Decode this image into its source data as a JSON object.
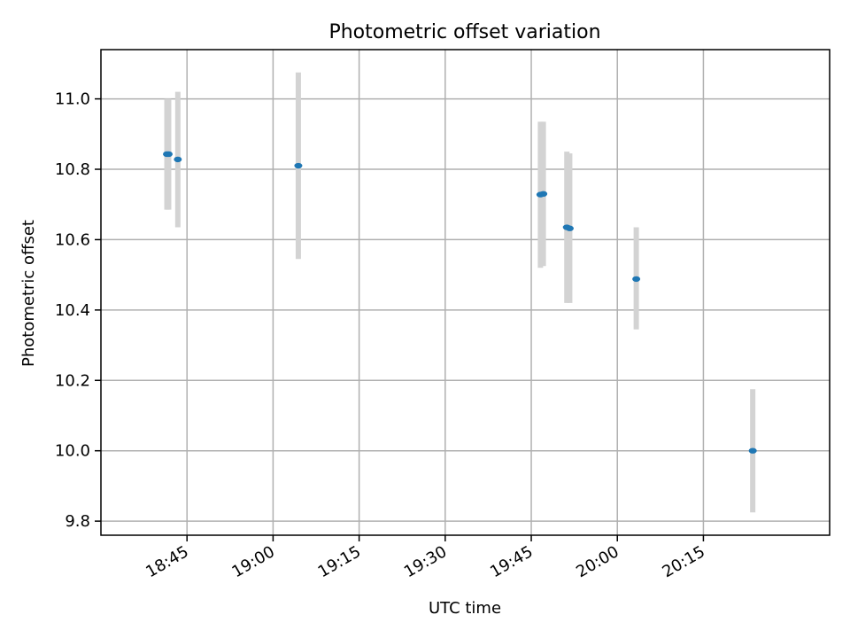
{
  "chart_data": {
    "type": "scatter",
    "title": "Photometric offset variation",
    "xlabel": "UTC time",
    "ylabel": "Photometric offset",
    "x_unit": "UTC time (HH:MM)",
    "xlim": [
      "18:30",
      "20:37"
    ],
    "ylim": [
      9.76,
      11.14
    ],
    "x_ticks": [
      "18:45",
      "19:00",
      "19:15",
      "19:30",
      "19:45",
      "20:00",
      "20:15"
    ],
    "y_ticks": [
      9.8,
      10.0,
      10.2,
      10.4,
      10.6,
      10.8,
      11.0
    ],
    "grid": true,
    "colors": {
      "point": "#1f77b4",
      "errorbar": "#d3d3d3"
    },
    "points": [
      {
        "x": "18:41:30",
        "y": 10.843,
        "ylow": 10.685,
        "yhigh": 11.0
      },
      {
        "x": "18:41:48",
        "y": 10.843,
        "ylow": 10.685,
        "yhigh": 11.0
      },
      {
        "x": "18:43:24",
        "y": 10.828,
        "ylow": 10.635,
        "yhigh": 11.02
      },
      {
        "x": "19:04:24",
        "y": 10.81,
        "ylow": 10.545,
        "yhigh": 11.075
      },
      {
        "x": "19:46:36",
        "y": 10.728,
        "ylow": 10.52,
        "yhigh": 10.935
      },
      {
        "x": "19:47:06",
        "y": 10.73,
        "ylow": 10.525,
        "yhigh": 10.935
      },
      {
        "x": "19:51:12",
        "y": 10.635,
        "ylow": 10.42,
        "yhigh": 10.85
      },
      {
        "x": "19:51:42",
        "y": 10.632,
        "ylow": 10.42,
        "yhigh": 10.845
      },
      {
        "x": "20:03:18",
        "y": 10.488,
        "ylow": 10.345,
        "yhigh": 10.635
      },
      {
        "x": "20:23:36",
        "y": 10.0,
        "ylow": 9.825,
        "yhigh": 10.175
      }
    ]
  }
}
